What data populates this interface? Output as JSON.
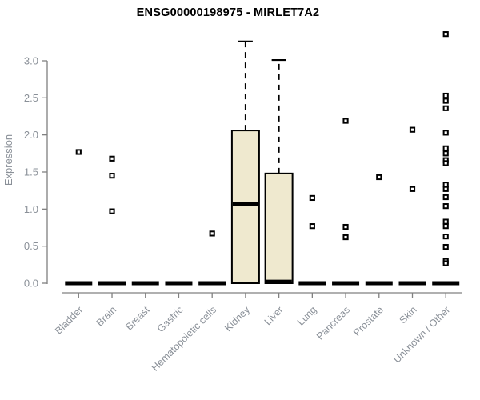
{
  "header": {
    "title": "ENSG00000198975 - MIRLET7A2"
  },
  "chart_data": {
    "type": "boxplot",
    "title": "ENSG00000198975 - MIRLET7A2",
    "xlabel": "",
    "ylabel": "Expression",
    "ylim": [
      0,
      3.45
    ],
    "y_ticks": [
      "0.0",
      "0.5",
      "1.0",
      "1.5",
      "2.0",
      "2.5",
      "3.0"
    ],
    "grid": false,
    "legend": "none",
    "categories": [
      "Bladder",
      "Brain",
      "Breast",
      "Gastric",
      "Hematopoietic cells",
      "Kidney",
      "Liver",
      "Lung",
      "Pancreas",
      "Prostate",
      "Skin",
      "Unknown / Other"
    ],
    "series": [
      {
        "name": "Bladder",
        "q1": 0,
        "median": 0,
        "q3": 0,
        "whisker_low": 0,
        "whisker_high": 0,
        "outliers": [
          1.77
        ]
      },
      {
        "name": "Brain",
        "q1": 0,
        "median": 0,
        "q3": 0,
        "whisker_low": 0,
        "whisker_high": 0,
        "outliers": [
          1.68,
          1.45,
          0.97
        ]
      },
      {
        "name": "Breast",
        "q1": 0,
        "median": 0,
        "q3": 0,
        "whisker_low": 0,
        "whisker_high": 0,
        "outliers": []
      },
      {
        "name": "Gastric",
        "q1": 0,
        "median": 0,
        "q3": 0,
        "whisker_low": 0,
        "whisker_high": 0,
        "outliers": []
      },
      {
        "name": "Hematopoietic cells",
        "q1": 0,
        "median": 0,
        "q3": 0,
        "whisker_low": 0,
        "whisker_high": 0,
        "outliers": [
          0.67
        ]
      },
      {
        "name": "Kidney",
        "q1": 0,
        "median": 1.07,
        "q3": 2.06,
        "whisker_low": 0,
        "whisker_high": 3.26,
        "outliers": []
      },
      {
        "name": "Liver",
        "q1": 0,
        "median": 0.02,
        "q3": 1.48,
        "whisker_low": 0,
        "whisker_high": 3.01,
        "outliers": []
      },
      {
        "name": "Lung",
        "q1": 0,
        "median": 0,
        "q3": 0,
        "whisker_low": 0,
        "whisker_high": 0,
        "outliers": [
          1.15,
          0.77
        ]
      },
      {
        "name": "Pancreas",
        "q1": 0,
        "median": 0,
        "q3": 0,
        "whisker_low": 0,
        "whisker_high": 0,
        "outliers": [
          2.19,
          0.76,
          0.62
        ]
      },
      {
        "name": "Prostate",
        "q1": 0,
        "median": 0,
        "q3": 0,
        "whisker_low": 0,
        "whisker_high": 0,
        "outliers": [
          1.43
        ]
      },
      {
        "name": "Skin",
        "q1": 0,
        "median": 0,
        "q3": 0,
        "whisker_low": 0,
        "whisker_high": 0,
        "outliers": [
          2.07,
          1.27
        ]
      },
      {
        "name": "Unknown / Other",
        "q1": 0,
        "median": 0,
        "q3": 0,
        "whisker_low": 0,
        "whisker_high": 0,
        "outliers": [
          3.36,
          2.53,
          2.46,
          2.36,
          2.03,
          1.82,
          1.75,
          1.66,
          1.62,
          1.33,
          1.27,
          1.16,
          1.04,
          0.83,
          0.77,
          0.63,
          0.49,
          0.3,
          0.27
        ]
      }
    ],
    "colors": {
      "box_fill": "#EFE9CF",
      "box_stroke": "#000000",
      "median": "#000000",
      "whisker": "#000000",
      "outlier": "#000000",
      "axis": "#808080",
      "tick_label": "#8A9098",
      "title": "#000000",
      "background": "#FFFFFF"
    }
  }
}
